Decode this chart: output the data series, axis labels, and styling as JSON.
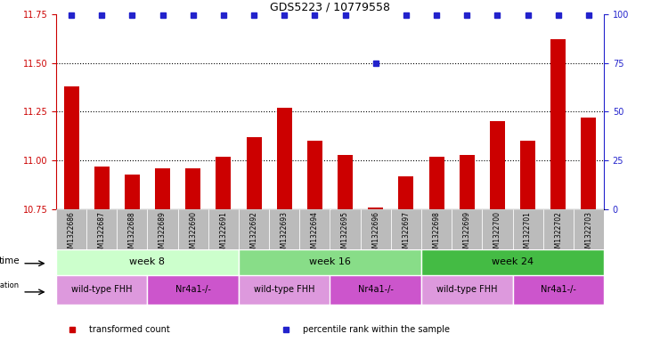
{
  "title": "GDS5223 / 10779558",
  "samples": [
    "GSM1322686",
    "GSM1322687",
    "GSM1322688",
    "GSM1322689",
    "GSM1322690",
    "GSM1322691",
    "GSM1322692",
    "GSM1322693",
    "GSM1322694",
    "GSM1322695",
    "GSM1322696",
    "GSM1322697",
    "GSM1322698",
    "GSM1322699",
    "GSM1322700",
    "GSM1322701",
    "GSM1322702",
    "GSM1322703"
  ],
  "transformed_counts": [
    11.38,
    10.97,
    10.93,
    10.96,
    10.96,
    11.02,
    11.12,
    11.27,
    11.1,
    11.03,
    10.76,
    10.92,
    11.02,
    11.03,
    11.2,
    11.1,
    11.62,
    11.22
  ],
  "percentile_ranks": [
    100,
    100,
    100,
    100,
    100,
    100,
    100,
    100,
    100,
    100,
    75,
    100,
    100,
    100,
    100,
    100,
    100,
    100
  ],
  "ylim_left": [
    10.75,
    11.75
  ],
  "ylim_right": [
    0,
    100
  ],
  "yticks_left": [
    10.75,
    11.0,
    11.25,
    11.5,
    11.75
  ],
  "yticks_right": [
    0,
    25,
    50,
    75,
    100
  ],
  "bar_color": "#cc0000",
  "dot_color": "#2222cc",
  "bar_width": 0.5,
  "time_groups": [
    {
      "label": "week 8",
      "start": 0,
      "end": 5,
      "color": "#ccffcc"
    },
    {
      "label": "week 16",
      "start": 6,
      "end": 11,
      "color": "#88dd88"
    },
    {
      "label": "week 24",
      "start": 12,
      "end": 17,
      "color": "#44bb44"
    }
  ],
  "genotype_groups": [
    {
      "label": "wild-type FHH",
      "start": 0,
      "end": 2,
      "color": "#dd99dd"
    },
    {
      "label": "Nr4a1-/-",
      "start": 3,
      "end": 5,
      "color": "#cc55cc"
    },
    {
      "label": "wild-type FHH",
      "start": 6,
      "end": 8,
      "color": "#dd99dd"
    },
    {
      "label": "Nr4a1-/-",
      "start": 9,
      "end": 11,
      "color": "#cc55cc"
    },
    {
      "label": "wild-type FHH",
      "start": 12,
      "end": 14,
      "color": "#dd99dd"
    },
    {
      "label": "Nr4a1-/-",
      "start": 15,
      "end": 17,
      "color": "#cc55cc"
    }
  ],
  "legend_items": [
    {
      "label": "transformed count",
      "color": "#cc0000",
      "marker": "s"
    },
    {
      "label": "percentile rank within the sample",
      "color": "#2222cc",
      "marker": "s"
    }
  ],
  "background_color": "#ffffff",
  "tick_color_left": "#cc0000",
  "tick_color_right": "#2222cc",
  "header_row_color": "#bbbbbb"
}
